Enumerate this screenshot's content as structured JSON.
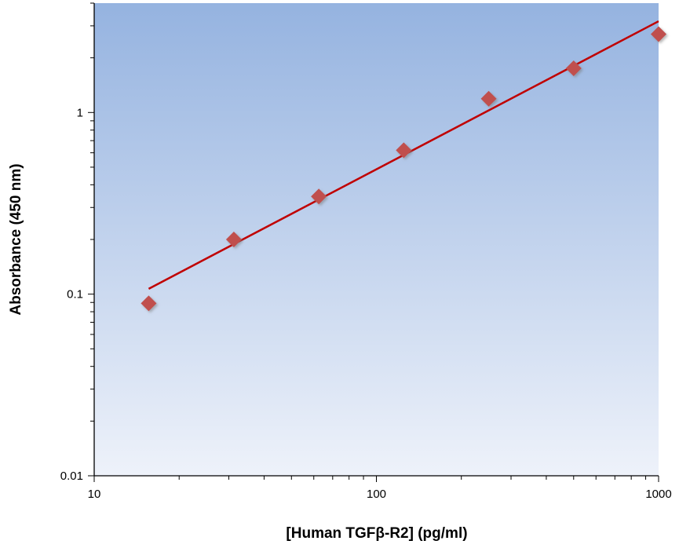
{
  "chart_data": {
    "type": "scatter",
    "xlabel": "[Human TGFβ-R2] (pg/ml)",
    "ylabel": "Absorbance (450 nm)",
    "xscale": "log",
    "yscale": "log",
    "xlim": [
      10,
      1000
    ],
    "ylim": [
      0.01,
      4
    ],
    "x_ticks": [
      10,
      100,
      1000
    ],
    "x_tick_labels": [
      "10",
      "100",
      "1000"
    ],
    "y_ticks": [
      0.01,
      0.1,
      1
    ],
    "y_tick_labels": [
      "0.01",
      "0.1",
      "1"
    ],
    "grid": false,
    "legend": "none",
    "series": [
      {
        "x": [
          15.6,
          31.25,
          62.5,
          125,
          250,
          500,
          1000
        ],
        "y": [
          0.089,
          0.2,
          0.345,
          0.62,
          1.19,
          1.75,
          2.7
        ],
        "marker": "diamond",
        "color": "#c0504d"
      }
    ],
    "trendline": {
      "x": [
        15.6,
        1000
      ],
      "y": [
        0.107,
        3.18
      ],
      "color": "#c00000"
    },
    "plot_background": [
      "#95b3e0",
      "#eef2fa"
    ]
  }
}
